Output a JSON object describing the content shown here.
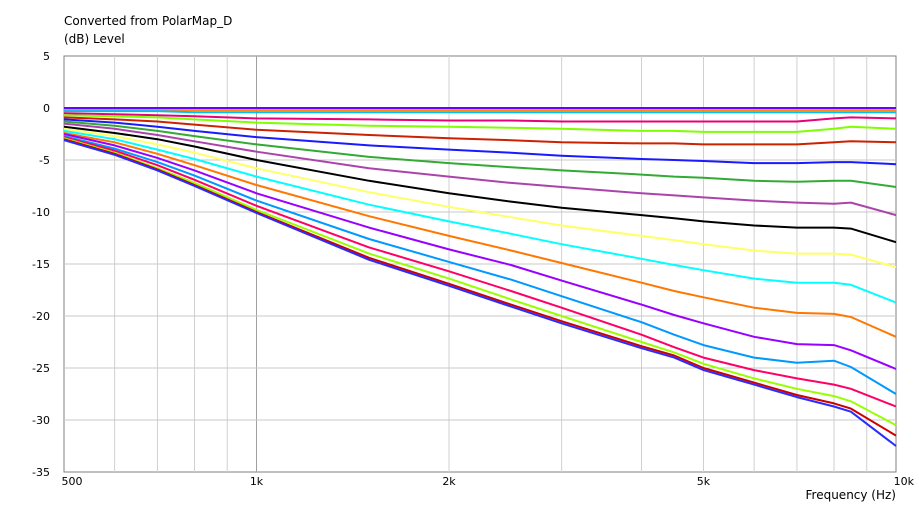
{
  "chart_data": {
    "type": "line",
    "title": "Converted from PolarMap_D",
    "ylabel": "(dB)  Level",
    "xlabel": "Frequency  (Hz)",
    "xscale": "log",
    "xlim": [
      500,
      10000
    ],
    "ylim": [
      -35,
      5
    ],
    "grid": true,
    "x_tick_labels": [
      {
        "value": 500,
        "label": "500"
      },
      {
        "value": 1000,
        "label": "1k"
      },
      {
        "value": 2000,
        "label": "2k"
      },
      {
        "value": 5000,
        "label": "5k"
      },
      {
        "value": 10000,
        "label": "10k"
      }
    ],
    "y_tick_labels": [
      {
        "value": 5,
        "label": "5"
      },
      {
        "value": 0,
        "label": "0"
      },
      {
        "value": -5,
        "label": "-5"
      },
      {
        "value": -10,
        "label": "-10"
      },
      {
        "value": -15,
        "label": "-15"
      },
      {
        "value": -20,
        "label": "-20"
      },
      {
        "value": -25,
        "label": "-25"
      },
      {
        "value": -30,
        "label": "-30"
      },
      {
        "value": -35,
        "label": "-35"
      }
    ],
    "x": [
      500,
      600,
      700,
      800,
      1000,
      1500,
      2000,
      2500,
      3000,
      4000,
      4500,
      5000,
      6000,
      7000,
      8000,
      8500,
      10000
    ],
    "series": [
      {
        "color": "#6a00ff",
        "values": [
          0,
          0,
          0,
          0,
          0,
          0,
          0,
          0,
          0,
          0,
          0,
          0,
          0,
          0,
          0,
          0,
          0
        ]
      },
      {
        "color": "#ff8c00",
        "values": [
          -0.2,
          -0.2,
          -0.2,
          -0.2,
          -0.2,
          -0.2,
          -0.2,
          -0.2,
          -0.2,
          -0.2,
          -0.2,
          -0.2,
          -0.2,
          -0.2,
          -0.2,
          -0.2,
          -0.2
        ]
      },
      {
        "color": "#00bfff",
        "values": [
          -0.3,
          -0.3,
          -0.3,
          -0.4,
          -0.4,
          -0.4,
          -0.4,
          -0.4,
          -0.4,
          -0.4,
          -0.4,
          -0.4,
          -0.4,
          -0.4,
          -0.4,
          -0.4,
          -0.4
        ]
      },
      {
        "color": "#e8007a",
        "values": [
          -0.5,
          -0.6,
          -0.7,
          -0.8,
          -1.0,
          -1.1,
          -1.2,
          -1.2,
          -1.3,
          -1.3,
          -1.3,
          -1.3,
          -1.3,
          -1.3,
          -1.0,
          -0.9,
          -1.0
        ]
      },
      {
        "color": "#7fff00",
        "values": [
          -0.7,
          -0.8,
          -0.9,
          -1.1,
          -1.4,
          -1.7,
          -1.8,
          -1.9,
          -2.0,
          -2.2,
          -2.2,
          -2.3,
          -2.3,
          -2.3,
          -2.0,
          -1.8,
          -2.0
        ]
      },
      {
        "color": "#cc2200",
        "values": [
          -0.9,
          -1.1,
          -1.3,
          -1.6,
          -2.1,
          -2.6,
          -2.9,
          -3.1,
          -3.3,
          -3.4,
          -3.4,
          -3.5,
          -3.5,
          -3.5,
          -3.3,
          -3.2,
          -3.3
        ]
      },
      {
        "color": "#1a1aff",
        "values": [
          -1.1,
          -1.4,
          -1.8,
          -2.2,
          -2.8,
          -3.6,
          -4.0,
          -4.3,
          -4.6,
          -4.9,
          -5.0,
          -5.1,
          -5.3,
          -5.3,
          -5.2,
          -5.2,
          -5.4
        ]
      },
      {
        "color": "#33aa33",
        "values": [
          -1.3,
          -1.7,
          -2.2,
          -2.7,
          -3.5,
          -4.7,
          -5.3,
          -5.7,
          -6.0,
          -6.4,
          -6.6,
          -6.7,
          -7.0,
          -7.1,
          -7.0,
          -7.0,
          -7.6
        ]
      },
      {
        "color": "#aa44aa",
        "values": [
          -1.5,
          -2.0,
          -2.6,
          -3.2,
          -4.2,
          -5.8,
          -6.6,
          -7.2,
          -7.6,
          -8.2,
          -8.4,
          -8.6,
          -8.9,
          -9.1,
          -9.2,
          -9.1,
          -10.3
        ]
      },
      {
        "color": "#000000",
        "values": [
          -1.8,
          -2.4,
          -3.0,
          -3.7,
          -5.0,
          -7.0,
          -8.2,
          -9.0,
          -9.6,
          -10.3,
          -10.6,
          -10.9,
          -11.3,
          -11.5,
          -11.5,
          -11.6,
          -12.9
        ]
      },
      {
        "color": "#ffff66",
        "values": [
          -2.0,
          -2.7,
          -3.5,
          -4.3,
          -5.8,
          -8.1,
          -9.5,
          -10.5,
          -11.3,
          -12.3,
          -12.7,
          -13.1,
          -13.7,
          -14.0,
          -14.0,
          -14.1,
          -15.3
        ]
      },
      {
        "color": "#00ffff",
        "values": [
          -2.2,
          -3.0,
          -4.0,
          -4.9,
          -6.6,
          -9.3,
          -10.9,
          -12.1,
          -13.1,
          -14.5,
          -15.1,
          -15.6,
          -16.4,
          -16.8,
          -16.8,
          -17.0,
          -18.7
        ]
      },
      {
        "color": "#ff7700",
        "values": [
          -2.4,
          -3.3,
          -4.4,
          -5.5,
          -7.4,
          -10.4,
          -12.3,
          -13.7,
          -14.9,
          -16.8,
          -17.6,
          -18.2,
          -19.2,
          -19.7,
          -19.8,
          -20.1,
          -22.0
        ]
      },
      {
        "color": "#9900ff",
        "values": [
          -2.5,
          -3.6,
          -4.8,
          -6.0,
          -8.2,
          -11.5,
          -13.6,
          -15.1,
          -16.6,
          -18.9,
          -19.9,
          -20.7,
          -22.0,
          -22.7,
          -22.8,
          -23.3,
          -25.1
        ]
      },
      {
        "color": "#0099ff",
        "values": [
          -2.7,
          -3.9,
          -5.2,
          -6.5,
          -8.9,
          -12.6,
          -14.8,
          -16.5,
          -18.1,
          -20.6,
          -21.8,
          -22.8,
          -24.0,
          -24.5,
          -24.3,
          -24.9,
          -27.5
        ]
      },
      {
        "color": "#ff0066",
        "values": [
          -2.8,
          -4.1,
          -5.5,
          -6.9,
          -9.4,
          -13.4,
          -15.7,
          -17.6,
          -19.2,
          -21.8,
          -23.0,
          -24.0,
          -25.2,
          -26.0,
          -26.6,
          -27.0,
          -28.7
        ]
      },
      {
        "color": "#99ff00",
        "values": [
          -2.9,
          -4.3,
          -5.8,
          -7.2,
          -9.8,
          -14.0,
          -16.4,
          -18.4,
          -20.0,
          -22.5,
          -23.5,
          -24.6,
          -26.0,
          -27.0,
          -27.7,
          -28.2,
          -30.5
        ]
      },
      {
        "color": "#cc0000",
        "values": [
          -3.0,
          -4.4,
          -5.9,
          -7.4,
          -10.0,
          -14.4,
          -16.9,
          -18.9,
          -20.5,
          -22.9,
          -23.8,
          -25.0,
          -26.4,
          -27.6,
          -28.4,
          -28.9,
          -31.5
        ]
      },
      {
        "color": "#2b2bff",
        "values": [
          -3.1,
          -4.5,
          -6.0,
          -7.5,
          -10.1,
          -14.6,
          -17.1,
          -19.1,
          -20.7,
          -23.1,
          -24.0,
          -25.2,
          -26.6,
          -27.8,
          -28.7,
          -29.2,
          -32.5
        ]
      }
    ]
  }
}
